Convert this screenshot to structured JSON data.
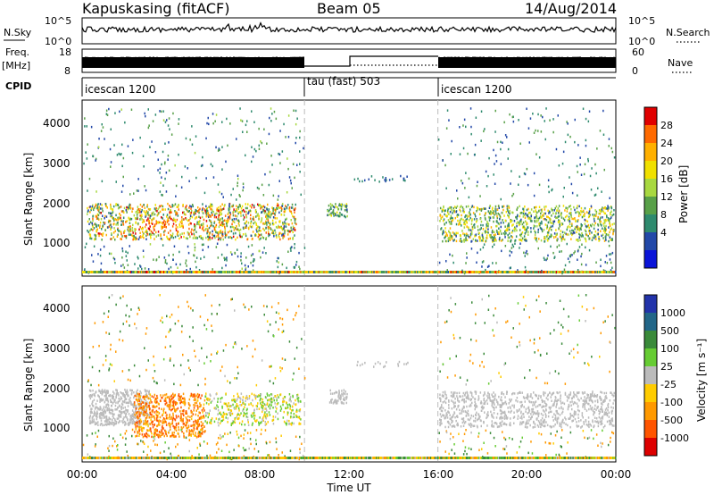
{
  "header": {
    "station": "Kapuskasing (fitACF)",
    "beam": "Beam 05",
    "date": "14/Aug/2014"
  },
  "panels": {
    "nsky_label": "N.Sky",
    "nsky_ticks": [
      "10^5",
      "10^0"
    ],
    "nsearch_label": "N.Search",
    "freq_label_1": "Freq.",
    "freq_label_2": "[MHz]",
    "freq_ticks": [
      "18",
      "8"
    ],
    "nave_ticks": [
      "60",
      "0"
    ],
    "nave_label": "Nave",
    "cpid_label": "CPID"
  },
  "cpid_segments": [
    {
      "label": "icescan 1200",
      "start_hour": 0,
      "end_hour": 10
    },
    {
      "label": "tau (fast) 503",
      "start_hour": 10,
      "end_hour": 16
    },
    {
      "label": "icescan 1200",
      "start_hour": 16,
      "end_hour": 24
    }
  ],
  "power_scale": {
    "label": "Power [dB]",
    "ticks": [
      "28",
      "24",
      "20",
      "16",
      "12",
      "8",
      "4"
    ],
    "colors": [
      "#e00000",
      "#ff6a00",
      "#ffb000",
      "#f0e000",
      "#a8d840",
      "#58a048",
      "#2e8a6e",
      "#2248a8",
      "#0a14d8"
    ]
  },
  "velocity_scale": {
    "label": "Velocity [m s⁻¹]",
    "ticks": [
      "1000",
      "500",
      "100",
      "25",
      "-25",
      "-100",
      "-500",
      "-1000"
    ],
    "colors": [
      "#2233aa",
      "#226688",
      "#3a8a3a",
      "#66cc33",
      "#bbbbbb",
      "#ffcc00",
      "#ff9900",
      "#ff5500",
      "#dd0000"
    ]
  },
  "axes": {
    "xlabel": "Time UT",
    "ylabel": "Slant Range [km]",
    "xticks": [
      "00:00",
      "04:00",
      "08:00",
      "12:00",
      "16:00",
      "20:00",
      "00:00"
    ],
    "yticks": [
      "1000",
      "2000",
      "3000",
      "4000"
    ]
  },
  "chart_data": [
    {
      "type": "heatmap",
      "title": "Power",
      "x_axis": "Time UT",
      "xlim_hours": [
        0,
        24
      ],
      "y_axis": "Slant Range [km]",
      "ylim": [
        180,
        4600
      ],
      "colorbar": "Power [dB]",
      "color_range": [
        0,
        30
      ],
      "blobs": [
        {
          "t0": 0.2,
          "t1": 9.6,
          "r0": 1100,
          "r1": 2000,
          "n": 1200,
          "pmin": 5,
          "pmax": 28,
          "dir": -1,
          "hot": [
            2.5,
            5,
            1300,
            1600
          ]
        },
        {
          "t0": 0,
          "t1": 10,
          "r0": 2100,
          "r1": 4400,
          "n": 240,
          "pmin": 4,
          "pmax": 14,
          "dir": 1
        },
        {
          "t0": 0,
          "t1": 10,
          "r0": 250,
          "r1": 1000,
          "n": 160,
          "pmin": 4,
          "pmax": 14,
          "dir": 1
        },
        {
          "t0": 11,
          "t1": 11.9,
          "r0": 1650,
          "r1": 2000,
          "n": 70,
          "pmin": 5,
          "pmax": 18,
          "dir": 1
        },
        {
          "t0": 12.2,
          "t1": 14.8,
          "r0": 2550,
          "r1": 2700,
          "n": 22,
          "pmin": 4,
          "pmax": 10,
          "dir": 1
        },
        {
          "t0": 16.05,
          "t1": 23.9,
          "r0": 1050,
          "r1": 1950,
          "n": 1000,
          "pmin": 5,
          "pmax": 22,
          "dir": -1
        },
        {
          "t0": 16,
          "t1": 24,
          "r0": 2100,
          "r1": 4400,
          "n": 160,
          "pmin": 4,
          "pmax": 12,
          "dir": 1
        },
        {
          "t0": 16,
          "t1": 24,
          "r0": 250,
          "r1": 1000,
          "n": 110,
          "pmin": 4,
          "pmax": 12,
          "dir": 1
        }
      ]
    },
    {
      "type": "heatmap",
      "title": "Velocity",
      "x_axis": "Time UT",
      "xlim_hours": [
        0,
        24
      ],
      "y_axis": "Slant Range [km]",
      "ylim": [
        180,
        4600
      ],
      "colorbar": "Velocity [m s⁻¹]",
      "color_range": [
        -1000,
        1000
      ],
      "blobs": [
        {
          "t0": 0.3,
          "t1": 3.0,
          "r0": 1100,
          "r1": 2000,
          "n": 500,
          "v": [
            -25,
            25
          ]
        },
        {
          "t0": 2.3,
          "t1": 5.5,
          "r0": 800,
          "r1": 1900,
          "n": 600,
          "v": [
            -800,
            -40
          ]
        },
        {
          "t0": 5.5,
          "t1": 9.8,
          "r0": 1100,
          "r1": 1900,
          "n": 400,
          "v": [
            -100,
            100
          ]
        },
        {
          "t0": 0,
          "t1": 10,
          "r0": 2100,
          "r1": 4400,
          "n": 200,
          "v": [
            -500,
            500
          ]
        },
        {
          "t0": 0,
          "t1": 10,
          "r0": 250,
          "r1": 1000,
          "n": 160,
          "v": [
            -500,
            300
          ]
        },
        {
          "t0": 11.1,
          "t1": 11.9,
          "r0": 1650,
          "r1": 2000,
          "n": 60,
          "v": [
            -25,
            25
          ]
        },
        {
          "t0": 12.2,
          "t1": 14.8,
          "r0": 2550,
          "r1": 2700,
          "n": 18,
          "v": [
            -25,
            25
          ]
        },
        {
          "t0": 16.05,
          "t1": 23.9,
          "r0": 1050,
          "r1": 1950,
          "n": 900,
          "v": [
            -25,
            25
          ]
        },
        {
          "t0": 16,
          "t1": 24,
          "r0": 2100,
          "r1": 4400,
          "n": 120,
          "v": [
            -400,
            400
          ]
        },
        {
          "t0": 16,
          "t1": 24,
          "r0": 250,
          "r1": 1000,
          "n": 90,
          "v": [
            -300,
            300
          ]
        }
      ]
    }
  ]
}
